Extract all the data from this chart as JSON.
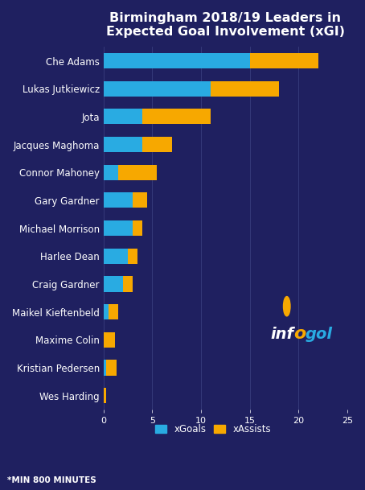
{
  "title": "Birmingham 2018/19 Leaders in\nExpected Goal Involvement (xGI)",
  "players": [
    "Che Adams",
    "Lukas Jutkiewicz",
    "Jota",
    "Jacques Maghoma",
    "Connor Mahoney",
    "Gary Gardner",
    "Michael Morrison",
    "Harlee Dean",
    "Craig Gardner",
    "Maikel Kieftenbeld",
    "Maxime Colin",
    "Kristian Pedersen",
    "Wes Harding"
  ],
  "xGoals": [
    15.0,
    11.0,
    4.0,
    4.0,
    1.5,
    3.0,
    3.0,
    2.5,
    2.0,
    0.5,
    0.0,
    0.3,
    0.0
  ],
  "xAssists": [
    7.0,
    7.0,
    7.0,
    3.0,
    4.0,
    1.5,
    1.0,
    1.0,
    1.0,
    1.0,
    1.2,
    1.0,
    0.3
  ],
  "xGoals_color": "#29ABE2",
  "xAssists_color": "#F7A800",
  "background_color": "#1F2060",
  "text_color": "#FFFFFF",
  "bar_height": 0.55,
  "xlim": [
    0,
    25
  ],
  "xticks": [
    0,
    5,
    10,
    15,
    20,
    25
  ],
  "footnote": "*MIN 800 MINUTES",
  "title_fontsize": 11.5,
  "tick_fontsize": 8,
  "label_fontsize": 8.5,
  "legend_fontsize": 8.5
}
